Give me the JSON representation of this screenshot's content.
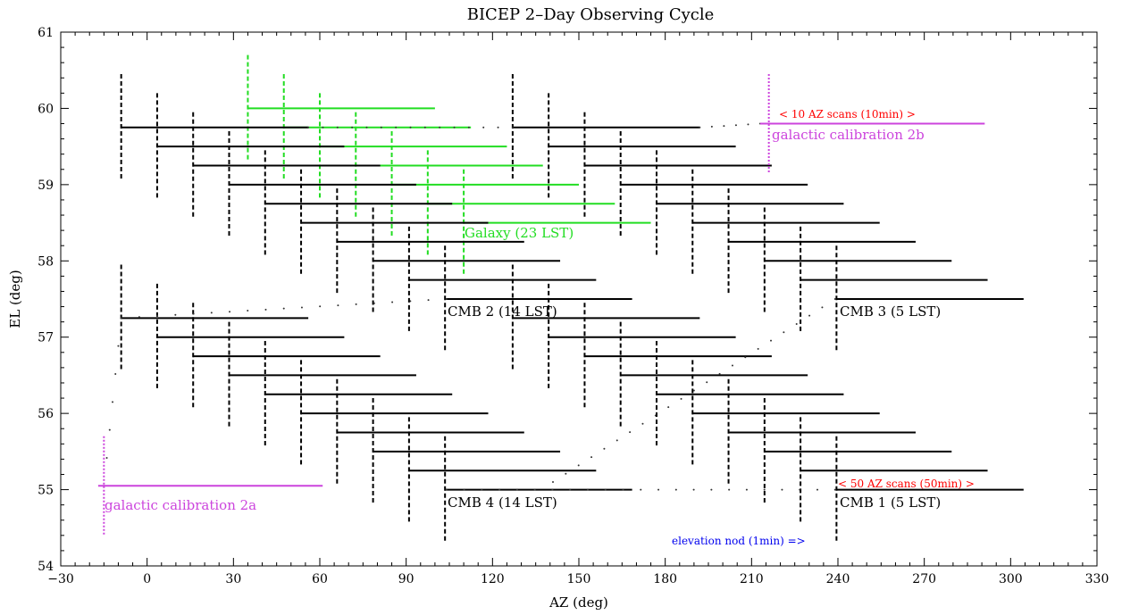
{
  "chart_data": {
    "type": "scatter",
    "title": "BICEP 2–Day Observing Cycle",
    "xlabel": "AZ (deg)",
    "ylabel": "EL (deg)",
    "xlim": [
      -30,
      330
    ],
    "ylim": [
      54,
      61
    ],
    "xticks": [
      -30,
      0,
      30,
      60,
      90,
      120,
      150,
      180,
      210,
      240,
      270,
      300,
      330
    ],
    "yticks": [
      54,
      55,
      56,
      57,
      58,
      59,
      60,
      61
    ],
    "grid": false,
    "colors": {
      "cmb": "#000000",
      "galaxy": "#22dd22",
      "calibration": "#cc44dd",
      "scan_note": "#ff0000",
      "nod_note": "#0000ee"
    },
    "scan_sets": [
      {
        "label": "Galaxy (23 LST)",
        "color": "#22dd22",
        "az_start": 35,
        "az_end": 100,
        "el_start": 60.0,
        "az_step": 12.5,
        "el_step": -0.25,
        "count": 7
      },
      {
        "label": "CMB 2 (14 LST)",
        "color": "#000000",
        "az_start": -9,
        "az_end": 56,
        "el_start": 59.75,
        "az_step": 12.5,
        "el_step": -0.25,
        "count": 10
      },
      {
        "label": "CMB 3 (5 LST)",
        "color": "#000000",
        "az_start": 127,
        "az_end": 192,
        "el_start": 59.75,
        "az_step": 12.5,
        "el_step": -0.25,
        "count": 10
      },
      {
        "label": "CMB 4 (14 LST)",
        "color": "#000000",
        "az_start": -9,
        "az_end": 56,
        "el_start": 57.25,
        "az_step": 12.5,
        "el_step": -0.25,
        "count": 10
      },
      {
        "label": "CMB 1 (5 LST)",
        "color": "#000000",
        "az_start": 127,
        "az_end": 192,
        "el_start": 57.25,
        "az_step": 12.5,
        "el_step": -0.25,
        "count": 10
      }
    ],
    "calibrations": [
      {
        "label": "galactic calibration 2a",
        "az_start": -17,
        "az_end": 61,
        "el": 55.05,
        "nod_az": -15
      },
      {
        "label": "galactic calibration 2b",
        "az_start": 213,
        "az_end": 291,
        "el": 59.8,
        "nod_az": 216
      }
    ],
    "annotations": {
      "galaxy": "Galaxy (23 LST)",
      "cmb1": "CMB 1 (5 LST)",
      "cmb2": "CMB 2 (14 LST)",
      "cmb3": "CMB 3 (5 LST)",
      "cmb4": "CMB 4 (14 LST)",
      "cal2a": "galactic calibration 2a",
      "cal2b": "galactic calibration 2b",
      "scans10": "< 10 AZ scans (10min) >",
      "scans50": "< 50 AZ scans (50min) >",
      "nod": "elevation nod (1min) =>"
    }
  }
}
